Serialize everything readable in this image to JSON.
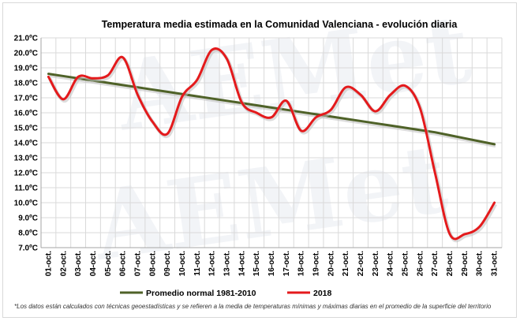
{
  "chart_data": {
    "type": "line",
    "title": "Temperatura  media  estimada  en  la  Comunidad  Valenciana  -  evolución  diaria",
    "xlabel": "",
    "ylabel": "",
    "categories": [
      "01-oct.",
      "02-oct.",
      "03-oct.",
      "04-oct.",
      "05-oct.",
      "06-oct.",
      "07-oct.",
      "08-oct.",
      "09-oct.",
      "10-oct.",
      "11-oct.",
      "12-oct.",
      "13-oct.",
      "14-oct.",
      "15-oct.",
      "16-oct.",
      "17-oct.",
      "18-oct.",
      "19-oct.",
      "20-oct.",
      "21-oct.",
      "22-oct.",
      "23-oct.",
      "24-oct.",
      "25-oct.",
      "26-oct.",
      "27-oct.",
      "28-oct.",
      "29-oct.",
      "30-oct.",
      "31-oct."
    ],
    "y_ticks": [
      "7.0ºC",
      "8.0ºC",
      "9.0ºC",
      "10.0ºC",
      "11.0ºC",
      "12.0ºC",
      "13.0ºC",
      "14.0ºC",
      "15.0ºC",
      "16.0ºC",
      "17.0ºC",
      "18.0ºC",
      "19.0ºC",
      "20.0ºC",
      "21.0ºC"
    ],
    "ylim": [
      7,
      21
    ],
    "grid": true,
    "legend_position": "bottom",
    "series": [
      {
        "name": "Promedio normal 1981-2010",
        "color": "#4f6228",
        "values": [
          18.6,
          18.45,
          18.3,
          18.15,
          18.0,
          17.85,
          17.7,
          17.55,
          17.4,
          17.25,
          17.1,
          16.95,
          16.8,
          16.65,
          16.5,
          16.35,
          16.2,
          16.05,
          15.9,
          15.75,
          15.6,
          15.45,
          15.3,
          15.15,
          15.0,
          14.85,
          14.7,
          14.5,
          14.3,
          14.1,
          13.9
        ]
      },
      {
        "name": "2018",
        "color": "#e41a1c",
        "values": [
          18.4,
          16.9,
          18.4,
          18.3,
          18.5,
          19.7,
          17.2,
          15.4,
          14.6,
          17.1,
          18.2,
          20.2,
          19.6,
          16.7,
          16.0,
          15.7,
          16.8,
          14.8,
          15.7,
          16.2,
          17.7,
          17.2,
          16.1,
          17.2,
          17.8,
          16.3,
          12.0,
          7.9,
          7.9,
          8.4,
          10.0
        ]
      }
    ]
  },
  "footnote": "*Los datos están calculados con técnicas geoestadísticas y se refieren a la media de temperaturas mínimas y máximas diarias en el promedio de la superficie del territorio"
}
